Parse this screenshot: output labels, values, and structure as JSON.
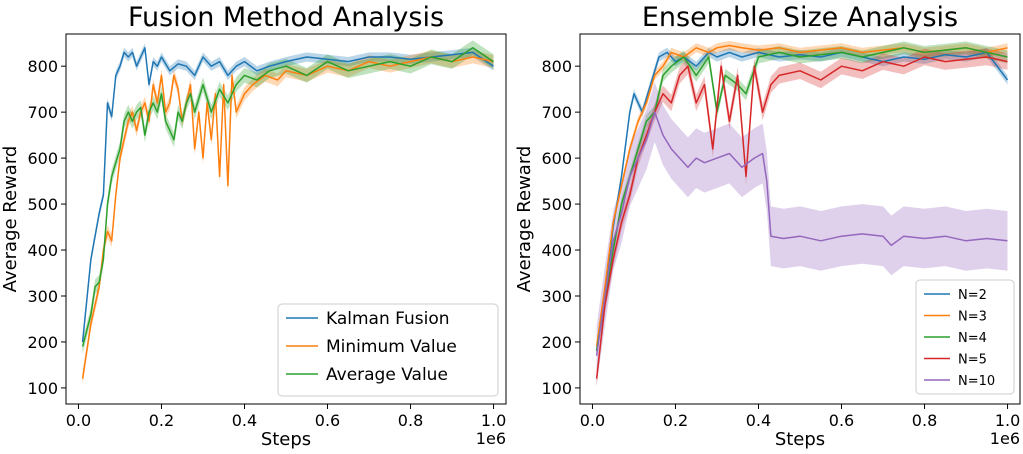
{
  "chart_data": [
    {
      "type": "line",
      "title": "Fusion Method Analysis",
      "xlabel": "Steps",
      "ylabel": "Average Reward",
      "x_multiplier": "1e6",
      "xlim": [
        -0.03,
        1.03
      ],
      "ylim": [
        65,
        870
      ],
      "xticks": [
        0.0,
        0.2,
        0.4,
        0.6,
        0.8,
        1.0
      ],
      "xtick_labels": [
        "0.0",
        "0.2",
        "0.4",
        "0.6",
        "0.8",
        "1.0"
      ],
      "yticks": [
        100,
        200,
        300,
        400,
        500,
        600,
        700,
        800
      ],
      "ytick_labels": [
        "100",
        "200",
        "300",
        "400",
        "500",
        "600",
        "700",
        "800"
      ],
      "legend_position": "lower-right",
      "series": [
        {
          "name": "Kalman Fusion",
          "color": "#1f77b4",
          "x": [
            0.01,
            0.03,
            0.05,
            0.06,
            0.07,
            0.08,
            0.09,
            0.1,
            0.11,
            0.12,
            0.13,
            0.14,
            0.15,
            0.16,
            0.17,
            0.18,
            0.19,
            0.2,
            0.22,
            0.24,
            0.26,
            0.28,
            0.3,
            0.32,
            0.34,
            0.36,
            0.38,
            0.4,
            0.43,
            0.46,
            0.5,
            0.55,
            0.6,
            0.65,
            0.7,
            0.75,
            0.8,
            0.85,
            0.9,
            0.95,
            1.0
          ],
          "y": [
            200,
            380,
            480,
            520,
            720,
            690,
            780,
            800,
            830,
            820,
            830,
            800,
            820,
            840,
            760,
            810,
            800,
            820,
            790,
            805,
            800,
            780,
            820,
            800,
            810,
            780,
            800,
            810,
            790,
            800,
            810,
            820,
            815,
            810,
            820,
            820,
            815,
            820,
            825,
            830,
            800
          ],
          "band": 10
        },
        {
          "name": "Minimum Value",
          "color": "#ff7f0e",
          "x": [
            0.01,
            0.03,
            0.05,
            0.06,
            0.07,
            0.08,
            0.09,
            0.1,
            0.11,
            0.12,
            0.13,
            0.14,
            0.15,
            0.16,
            0.17,
            0.18,
            0.19,
            0.2,
            0.21,
            0.22,
            0.23,
            0.24,
            0.25,
            0.26,
            0.27,
            0.28,
            0.29,
            0.3,
            0.31,
            0.32,
            0.33,
            0.34,
            0.35,
            0.36,
            0.37,
            0.38,
            0.4,
            0.42,
            0.45,
            0.48,
            0.5,
            0.55,
            0.6,
            0.65,
            0.7,
            0.75,
            0.8,
            0.85,
            0.9,
            0.95,
            1.0
          ],
          "y": [
            120,
            240,
            320,
            400,
            440,
            420,
            520,
            600,
            640,
            680,
            700,
            660,
            700,
            720,
            680,
            760,
            720,
            780,
            700,
            720,
            780,
            750,
            680,
            720,
            760,
            620,
            700,
            600,
            720,
            640,
            740,
            560,
            760,
            540,
            780,
            700,
            740,
            760,
            780,
            770,
            790,
            780,
            800,
            790,
            810,
            800,
            810,
            820,
            810,
            820,
            810
          ],
          "band": 14
        },
        {
          "name": "Average Value",
          "color": "#2ca02c",
          "x": [
            0.01,
            0.03,
            0.04,
            0.05,
            0.06,
            0.07,
            0.08,
            0.09,
            0.1,
            0.11,
            0.12,
            0.13,
            0.14,
            0.15,
            0.16,
            0.17,
            0.18,
            0.19,
            0.2,
            0.21,
            0.22,
            0.23,
            0.24,
            0.25,
            0.26,
            0.27,
            0.28,
            0.3,
            0.32,
            0.34,
            0.36,
            0.38,
            0.4,
            0.43,
            0.46,
            0.5,
            0.55,
            0.6,
            0.65,
            0.7,
            0.75,
            0.8,
            0.85,
            0.9,
            0.95,
            1.0
          ],
          "y": [
            190,
            260,
            320,
            330,
            380,
            500,
            560,
            590,
            620,
            680,
            700,
            680,
            700,
            710,
            650,
            700,
            720,
            700,
            740,
            680,
            660,
            640,
            700,
            680,
            720,
            740,
            700,
            760,
            700,
            750,
            720,
            760,
            780,
            770,
            790,
            800,
            780,
            810,
            790,
            800,
            810,
            800,
            820,
            810,
            840,
            810
          ],
          "band": 16
        }
      ]
    },
    {
      "type": "line",
      "title": "Ensemble Size Analysis",
      "xlabel": "Steps",
      "ylabel": "Average Reward",
      "x_multiplier": "1e6",
      "xlim": [
        -0.03,
        1.03
      ],
      "ylim": [
        65,
        870
      ],
      "xticks": [
        0.0,
        0.2,
        0.4,
        0.6,
        0.8,
        1.0
      ],
      "xtick_labels": [
        "0.0",
        "0.2",
        "0.4",
        "0.6",
        "0.8",
        "1.0"
      ],
      "yticks": [
        100,
        200,
        300,
        400,
        500,
        600,
        700,
        800
      ],
      "ytick_labels": [
        "100",
        "200",
        "300",
        "400",
        "500",
        "600",
        "700",
        "800"
      ],
      "legend_position": "lower-right",
      "series": [
        {
          "name": "N=2",
          "color": "#1f77b4",
          "x": [
            0.01,
            0.03,
            0.05,
            0.07,
            0.09,
            0.1,
            0.12,
            0.14,
            0.16,
            0.18,
            0.2,
            0.22,
            0.25,
            0.28,
            0.3,
            0.33,
            0.36,
            0.4,
            0.45,
            0.5,
            0.55,
            0.6,
            0.65,
            0.7,
            0.75,
            0.8,
            0.85,
            0.9,
            0.95,
            1.0
          ],
          "y": [
            180,
            300,
            450,
            560,
            700,
            740,
            700,
            760,
            820,
            830,
            810,
            820,
            800,
            830,
            820,
            830,
            820,
            830,
            820,
            825,
            820,
            830,
            820,
            810,
            820,
            815,
            825,
            820,
            830,
            770
          ],
          "band": 10
        },
        {
          "name": "N=3",
          "color": "#ff7f0e",
          "x": [
            0.01,
            0.03,
            0.05,
            0.07,
            0.09,
            0.11,
            0.13,
            0.15,
            0.17,
            0.19,
            0.22,
            0.25,
            0.28,
            0.3,
            0.33,
            0.36,
            0.4,
            0.45,
            0.5,
            0.55,
            0.6,
            0.65,
            0.7,
            0.75,
            0.8,
            0.85,
            0.9,
            0.95,
            1.0
          ],
          "y": [
            190,
            320,
            460,
            540,
            620,
            680,
            720,
            780,
            800,
            830,
            820,
            840,
            830,
            840,
            845,
            840,
            835,
            840,
            830,
            835,
            840,
            830,
            835,
            840,
            830,
            835,
            840,
            830,
            840
          ],
          "band": 10
        },
        {
          "name": "N=4",
          "color": "#2ca02c",
          "x": [
            0.01,
            0.03,
            0.05,
            0.07,
            0.09,
            0.11,
            0.13,
            0.15,
            0.17,
            0.19,
            0.22,
            0.25,
            0.28,
            0.3,
            0.32,
            0.35,
            0.37,
            0.4,
            0.45,
            0.5,
            0.55,
            0.6,
            0.65,
            0.7,
            0.75,
            0.8,
            0.85,
            0.9,
            0.95,
            1.0
          ],
          "y": [
            180,
            290,
            400,
            500,
            560,
            620,
            680,
            700,
            780,
            800,
            820,
            780,
            820,
            700,
            780,
            760,
            740,
            820,
            830,
            820,
            825,
            830,
            820,
            830,
            840,
            830,
            835,
            840,
            830,
            820
          ],
          "band": 14
        },
        {
          "name": "N=5",
          "color": "#d62728",
          "x": [
            0.01,
            0.03,
            0.05,
            0.07,
            0.09,
            0.11,
            0.13,
            0.15,
            0.17,
            0.19,
            0.21,
            0.23,
            0.25,
            0.27,
            0.29,
            0.31,
            0.33,
            0.35,
            0.37,
            0.39,
            0.41,
            0.43,
            0.45,
            0.5,
            0.55,
            0.6,
            0.65,
            0.7,
            0.75,
            0.8,
            0.85,
            0.9,
            0.95,
            1.0
          ],
          "y": [
            120,
            280,
            380,
            460,
            520,
            600,
            650,
            700,
            740,
            720,
            780,
            800,
            720,
            760,
            620,
            800,
            680,
            780,
            560,
            800,
            700,
            760,
            780,
            790,
            770,
            800,
            790,
            810,
            800,
            820,
            810,
            815,
            820,
            810
          ],
          "band": 18
        },
        {
          "name": "N=10",
          "color": "#9467bd",
          "x": [
            0.01,
            0.03,
            0.05,
            0.07,
            0.09,
            0.11,
            0.13,
            0.15,
            0.17,
            0.19,
            0.21,
            0.23,
            0.25,
            0.27,
            0.3,
            0.33,
            0.36,
            0.39,
            0.41,
            0.42,
            0.43,
            0.46,
            0.5,
            0.55,
            0.6,
            0.65,
            0.7,
            0.72,
            0.75,
            0.8,
            0.85,
            0.9,
            0.95,
            1.0
          ],
          "y": [
            170,
            300,
            420,
            480,
            560,
            600,
            640,
            700,
            650,
            620,
            600,
            580,
            600,
            590,
            600,
            610,
            580,
            600,
            610,
            550,
            430,
            425,
            430,
            420,
            430,
            435,
            430,
            410,
            430,
            425,
            430,
            420,
            425,
            420
          ],
          "band": 65
        }
      ]
    }
  ]
}
